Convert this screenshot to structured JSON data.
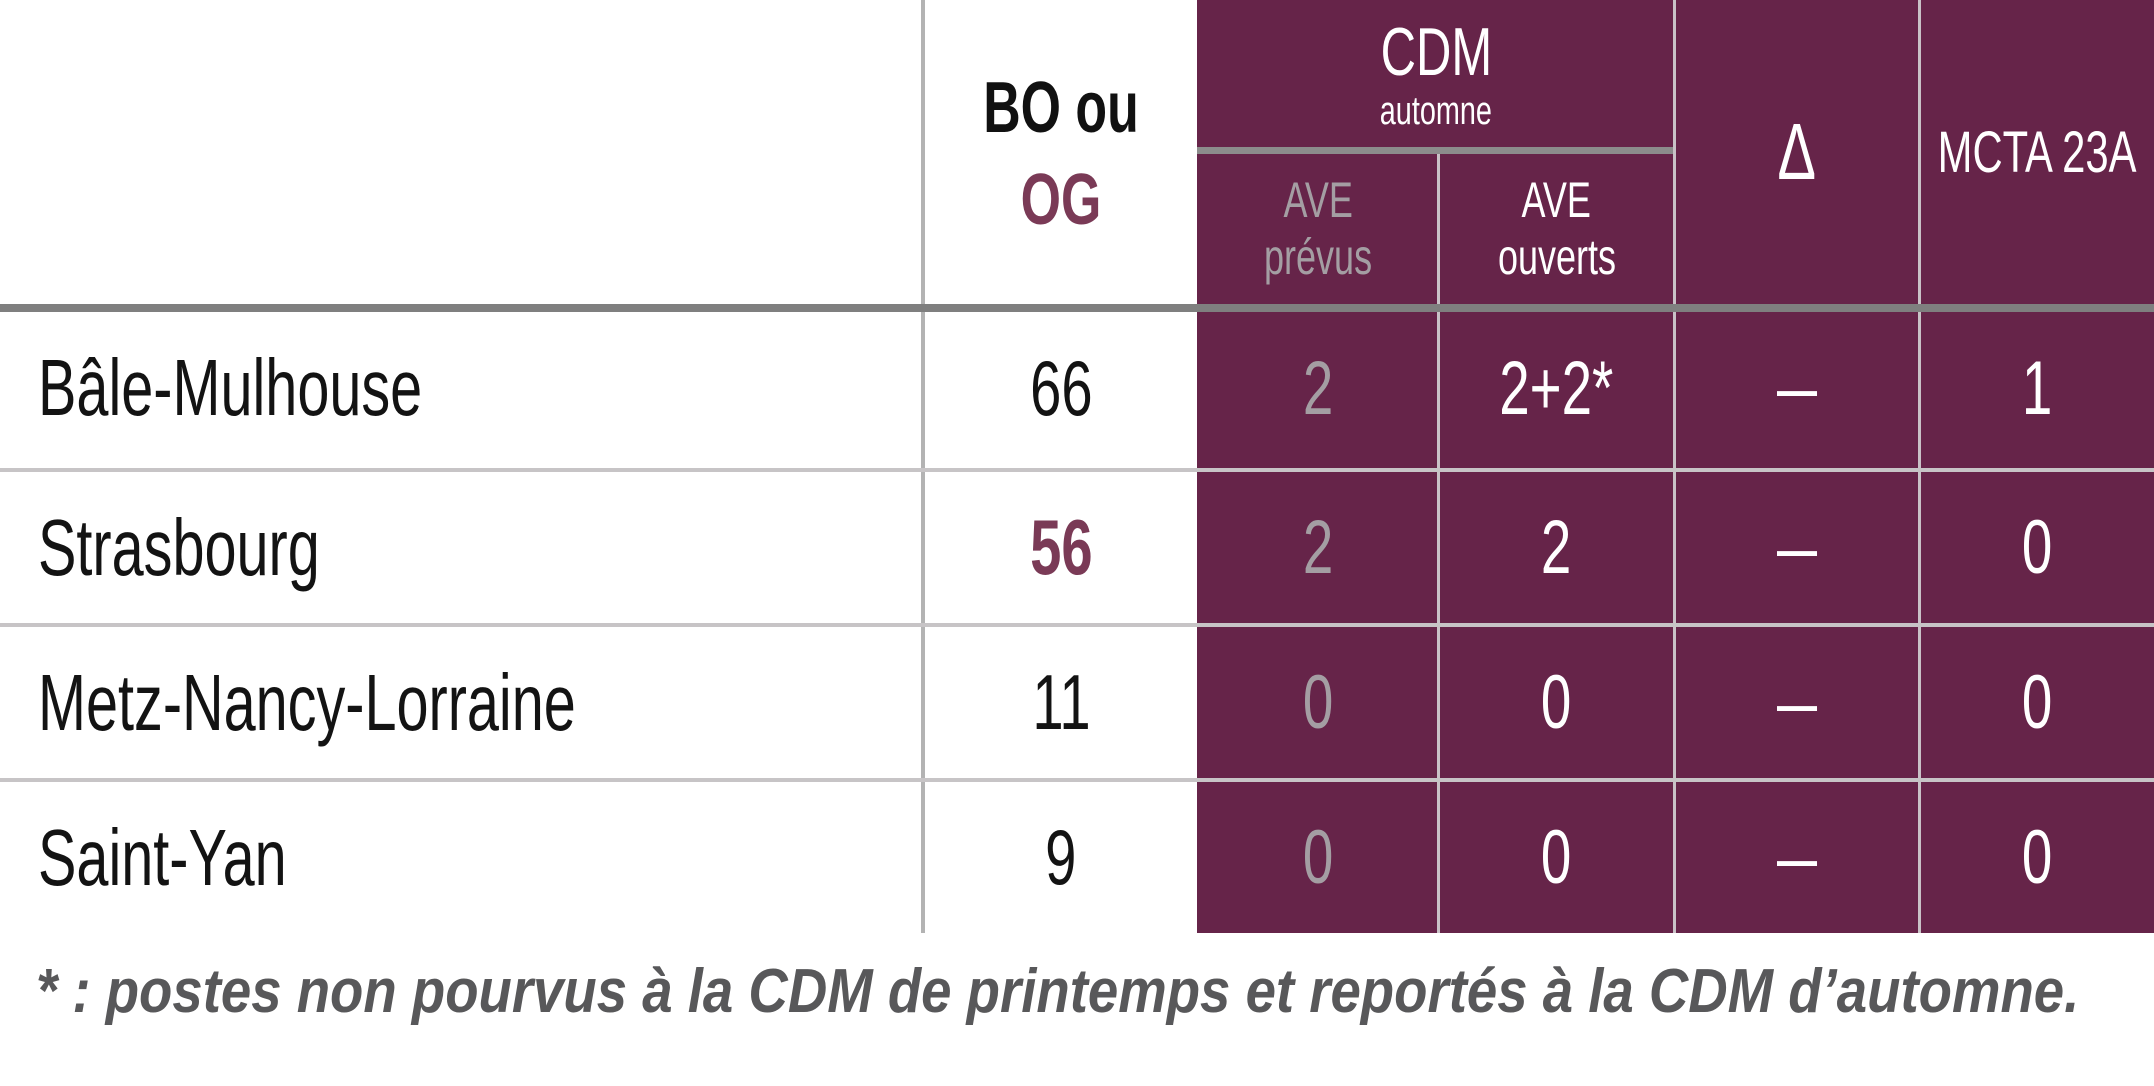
{
  "header": {
    "bo_line1": "BO ou",
    "bo_line2": "OG",
    "cdm_title": "CDM",
    "cdm_sub": "automne",
    "ave_prevus_line1": "AVE",
    "ave_prevus_line2": "prévus",
    "ave_ouverts_line1": "AVE",
    "ave_ouverts_line2": "ouverts",
    "delta": "Δ",
    "mcta": "MCTA 23A"
  },
  "rows": [
    {
      "name": "Bâle-Mulhouse",
      "bo": "66",
      "ave_prevus": "2",
      "ave_ouverts": "2+2*",
      "delta": "–",
      "mcta": "1"
    },
    {
      "name": "Strasbourg",
      "bo": "56",
      "ave_prevus": "2",
      "ave_ouverts": "2",
      "delta": "–",
      "mcta": "0"
    },
    {
      "name": "Metz-Nancy-Lorraine",
      "bo": "11",
      "ave_prevus": "0",
      "ave_ouverts": "0",
      "delta": "–",
      "mcta": "0"
    },
    {
      "name": "Saint-Yan",
      "bo": "9",
      "ave_prevus": "0",
      "ave_ouverts": "0",
      "delta": "–",
      "mcta": "0"
    }
  ],
  "footnote": "* : postes non pourvus à la CDM de printemps et reportés à la CDM d’automne.",
  "colors": {
    "table_purple": "#662449",
    "accent_maroon": "#7a3a56",
    "muted_gray_text": "#a49ea3",
    "footnote_gray": "#58585a",
    "header_rule_gray": "#7f7f7f",
    "row_rule_gray": "#c7c4c6"
  }
}
